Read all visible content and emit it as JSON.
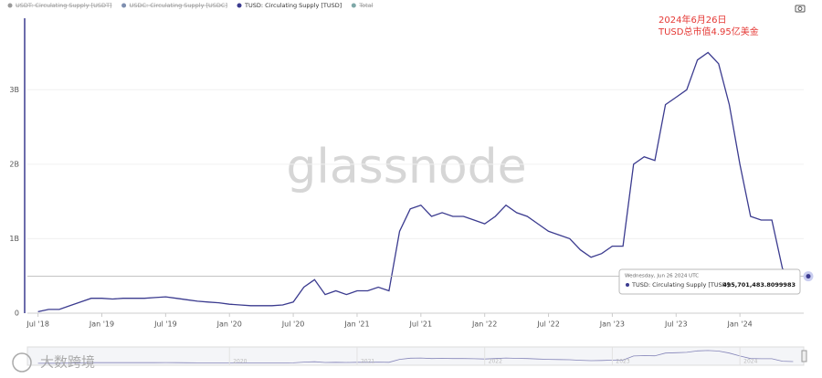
{
  "chart_data": {
    "type": "line",
    "legend_items": [
      {
        "name": "USDT: Circulating Supply [USDT]",
        "color": "#9a9a9a",
        "hidden": true
      },
      {
        "name": "USDC: Circulating Supply [USDC]",
        "color": "#7f8fb0",
        "hidden": true
      },
      {
        "name": "TUSD: Circulating Supply [TUSD]",
        "color": "#3b3b8f",
        "hidden": false
      },
      {
        "name": "Total",
        "color": "#7fa8a8",
        "hidden": true
      }
    ],
    "watermark": "glassnode",
    "annotation": [
      "2024年6月26日",
      "TUSD总市值4.95亿美金"
    ],
    "annotation_color": "#e53935",
    "corner_watermark": "大数跨境",
    "x": [
      "2018-07",
      "2018-08",
      "2018-09",
      "2018-10",
      "2018-11",
      "2018-12",
      "2019-01",
      "2019-02",
      "2019-03",
      "2019-04",
      "2019-05",
      "2019-06",
      "2019-07",
      "2019-08",
      "2019-09",
      "2019-10",
      "2019-11",
      "2019-12",
      "2020-01",
      "2020-02",
      "2020-03",
      "2020-04",
      "2020-05",
      "2020-06",
      "2020-07",
      "2020-08",
      "2020-09",
      "2020-10",
      "2020-11",
      "2020-12",
      "2021-01",
      "2021-02",
      "2021-03",
      "2021-04",
      "2021-05",
      "2021-06",
      "2021-07",
      "2021-08",
      "2021-09",
      "2021-10",
      "2021-11",
      "2021-12",
      "2022-01",
      "2022-02",
      "2022-03",
      "2022-04",
      "2022-05",
      "2022-06",
      "2022-07",
      "2022-08",
      "2022-09",
      "2022-10",
      "2022-11",
      "2022-12",
      "2023-01",
      "2023-02",
      "2023-03",
      "2023-04",
      "2023-05",
      "2023-06",
      "2023-07",
      "2023-08",
      "2023-09",
      "2023-10",
      "2023-11",
      "2023-12",
      "2024-01",
      "2024-02",
      "2024-03",
      "2024-04",
      "2024-05",
      "2024-06"
    ],
    "series": [
      {
        "name": "TUSD: Circulating Supply [TUSD]",
        "color": "#3b3b8f",
        "values": [
          20000000,
          50000000,
          50000000,
          100000000,
          150000000,
          200000000,
          200000000,
          190000000,
          200000000,
          200000000,
          200000000,
          210000000,
          220000000,
          200000000,
          180000000,
          160000000,
          150000000,
          140000000,
          120000000,
          110000000,
          100000000,
          100000000,
          100000000,
          110000000,
          150000000,
          350000000,
          450000000,
          250000000,
          300000000,
          250000000,
          300000000,
          300000000,
          350000000,
          300000000,
          1100000000,
          1400000000,
          1450000000,
          1300000000,
          1350000000,
          1300000000,
          1300000000,
          1250000000,
          1200000000,
          1300000000,
          1450000000,
          1350000000,
          1300000000,
          1200000000,
          1100000000,
          1050000000,
          1000000000,
          850000000,
          750000000,
          800000000,
          900000000,
          900000000,
          2000000000,
          2100000000,
          2050000000,
          2800000000,
          2900000000,
          3000000000,
          3400000000,
          3500000000,
          3350000000,
          2800000000,
          2000000000,
          1300000000,
          1250000000,
          1250000000,
          600000000,
          495701483.8099983
        ]
      }
    ],
    "xlim": [
      "2018-06",
      "2024-07"
    ],
    "xticks": [
      {
        "value": "2018-07",
        "label": "Jul '18"
      },
      {
        "value": "2019-01",
        "label": "Jan '19"
      },
      {
        "value": "2019-07",
        "label": "Jul '19"
      },
      {
        "value": "2020-01",
        "label": "Jan '20"
      },
      {
        "value": "2020-07",
        "label": "Jul '20"
      },
      {
        "value": "2021-01",
        "label": "Jan '21"
      },
      {
        "value": "2021-07",
        "label": "Jul '21"
      },
      {
        "value": "2022-01",
        "label": "Jan '22"
      },
      {
        "value": "2022-07",
        "label": "Jul '22"
      },
      {
        "value": "2023-01",
        "label": "Jan '23"
      },
      {
        "value": "2023-07",
        "label": "Jul '23"
      },
      {
        "value": "2024-01",
        "label": "Jan '24"
      }
    ],
    "ylim": [
      0,
      3960000000
    ],
    "yticks": [
      0,
      {
        "value": 1000000000,
        "label": "1B"
      },
      {
        "value": 2000000000,
        "label": "2B"
      },
      {
        "value": 3000000000,
        "label": "3B"
      }
    ],
    "grid": true,
    "tooltip": {
      "date_label": "Wednesday, Jun 26 2024 UTC",
      "series_label": "TUSD: Circulating Supply [TUSD]:",
      "value_label": "495,701,483.8099983"
    },
    "navigator_ticks": [
      {
        "value": "2020-01",
        "label": "2020"
      },
      {
        "value": "2021-01",
        "label": "2021"
      },
      {
        "value": "2022-01",
        "label": "2022"
      },
      {
        "value": "2023-01",
        "label": "2023"
      },
      {
        "value": "2024-01",
        "label": "2024"
      }
    ]
  }
}
